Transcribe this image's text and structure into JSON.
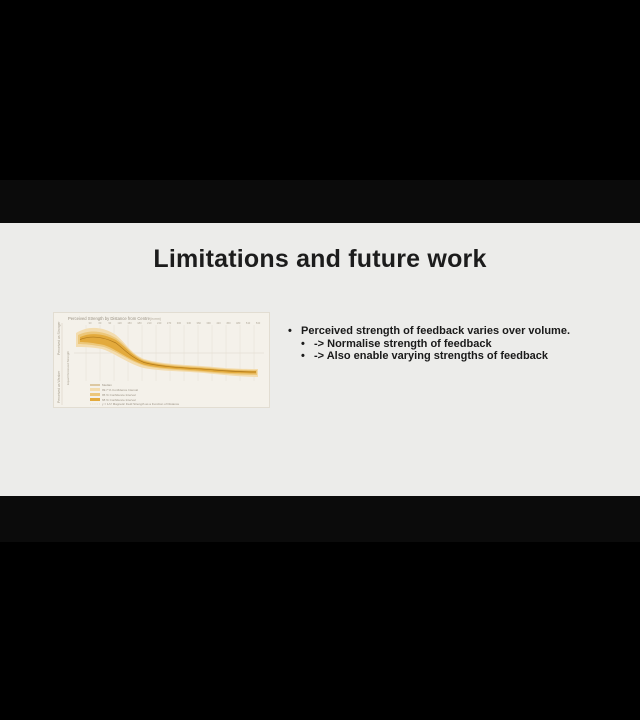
{
  "slide": {
    "title": "Limitations and future work",
    "bullets": [
      {
        "text": "Perceived strength of feedback varies over volume.",
        "sub": [
          "-> Normalise strength of feedback",
          "-> Also enable varying strengths of feedback"
        ]
      }
    ],
    "bullet_glyph": "•"
  },
  "figure": {
    "title": "Perceived Strength by Distance from Centre",
    "title_note": "(in mm)",
    "x_tick_labels": [
      "30",
      "60",
      "90",
      "120",
      "150",
      "180",
      "210",
      "240",
      "270",
      "300",
      "330",
      "360",
      "390",
      "420",
      "450",
      "480",
      "510",
      "540"
    ],
    "y_axis_label": "Perceived as Stronger",
    "y_axis_label_lower": "Perceived as Weaker",
    "mid_label": "Equal Perceived Strength",
    "legend": [
      "Median",
      "99.7 % Confidence Interval",
      "95 % Confidence Interval",
      "68 % Confidence Interval",
      "y = 1/x³ Magnetic Field Strength as a Function of Distance"
    ],
    "colors": {
      "band_outer": "#f3dcae",
      "band_mid": "#ecc77a",
      "band_inner": "#e3aa3c",
      "median": "#b07a1c"
    }
  }
}
